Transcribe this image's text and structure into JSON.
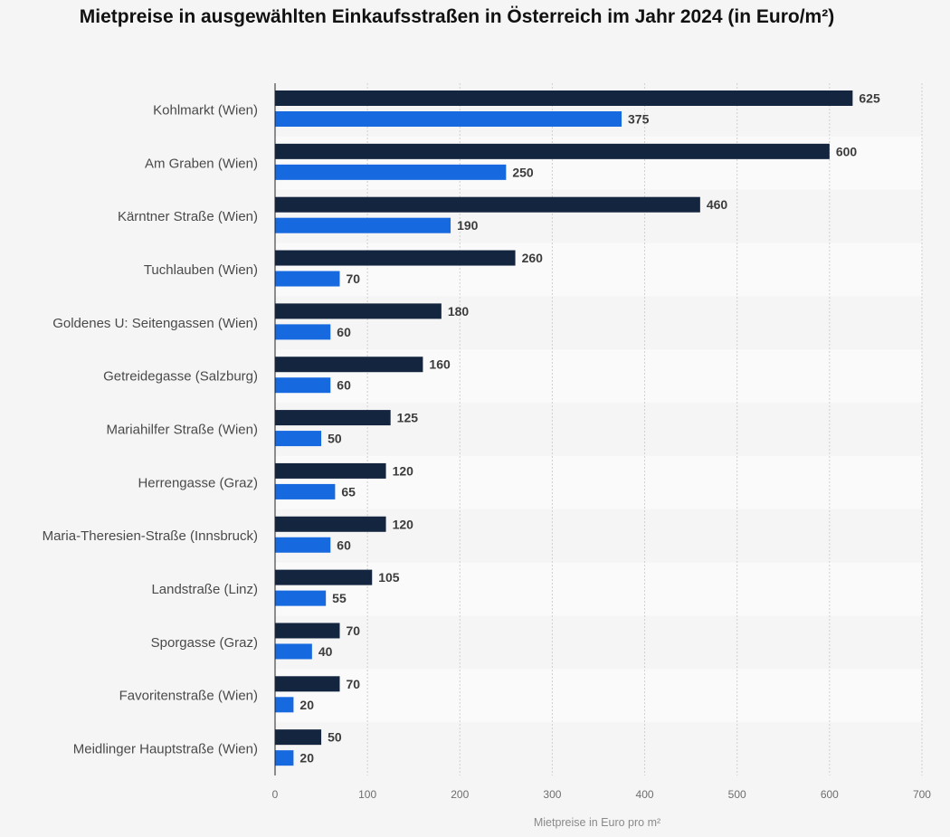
{
  "title": "Mietpreise in ausgewählten Einkaufsstraßen in Österreich im Jahr 2024 (in Euro/m²)",
  "colors": {
    "series_a": "#14253f",
    "series_b": "#1769e0",
    "band": "#fafafa",
    "grid": "#cfcfcf"
  },
  "chart_data": {
    "type": "bar",
    "orientation": "horizontal",
    "categories": [
      "Kohlmarkt (Wien)",
      "Am Graben (Wien)",
      "Kärntner Straße (Wien)",
      "Tuchlauben (Wien)",
      "Goldenes U: Seitengassen (Wien)",
      "Getreidegasse (Salzburg)",
      "Mariahilfer Straße (Wien)",
      "Herrengasse (Graz)",
      "Maria-Theresien-Straße (Innsbruck)",
      "Landstraße (Linz)",
      "Sporgasse (Graz)",
      "Favoritenstraße (Wien)",
      "Meidlinger Hauptstraße (Wien)"
    ],
    "series": [
      {
        "values": [
          625,
          600,
          460,
          260,
          180,
          160,
          125,
          120,
          120,
          105,
          70,
          70,
          50
        ]
      },
      {
        "values": [
          375,
          250,
          190,
          70,
          60,
          60,
          50,
          65,
          60,
          55,
          40,
          20,
          20
        ]
      }
    ],
    "xlabel": "Mietpreise in Euro pro m²",
    "xlim": [
      0,
      700
    ],
    "xticks": [
      0,
      100,
      200,
      300,
      400,
      500,
      600,
      700
    ],
    "grid": true,
    "legend": "none"
  }
}
